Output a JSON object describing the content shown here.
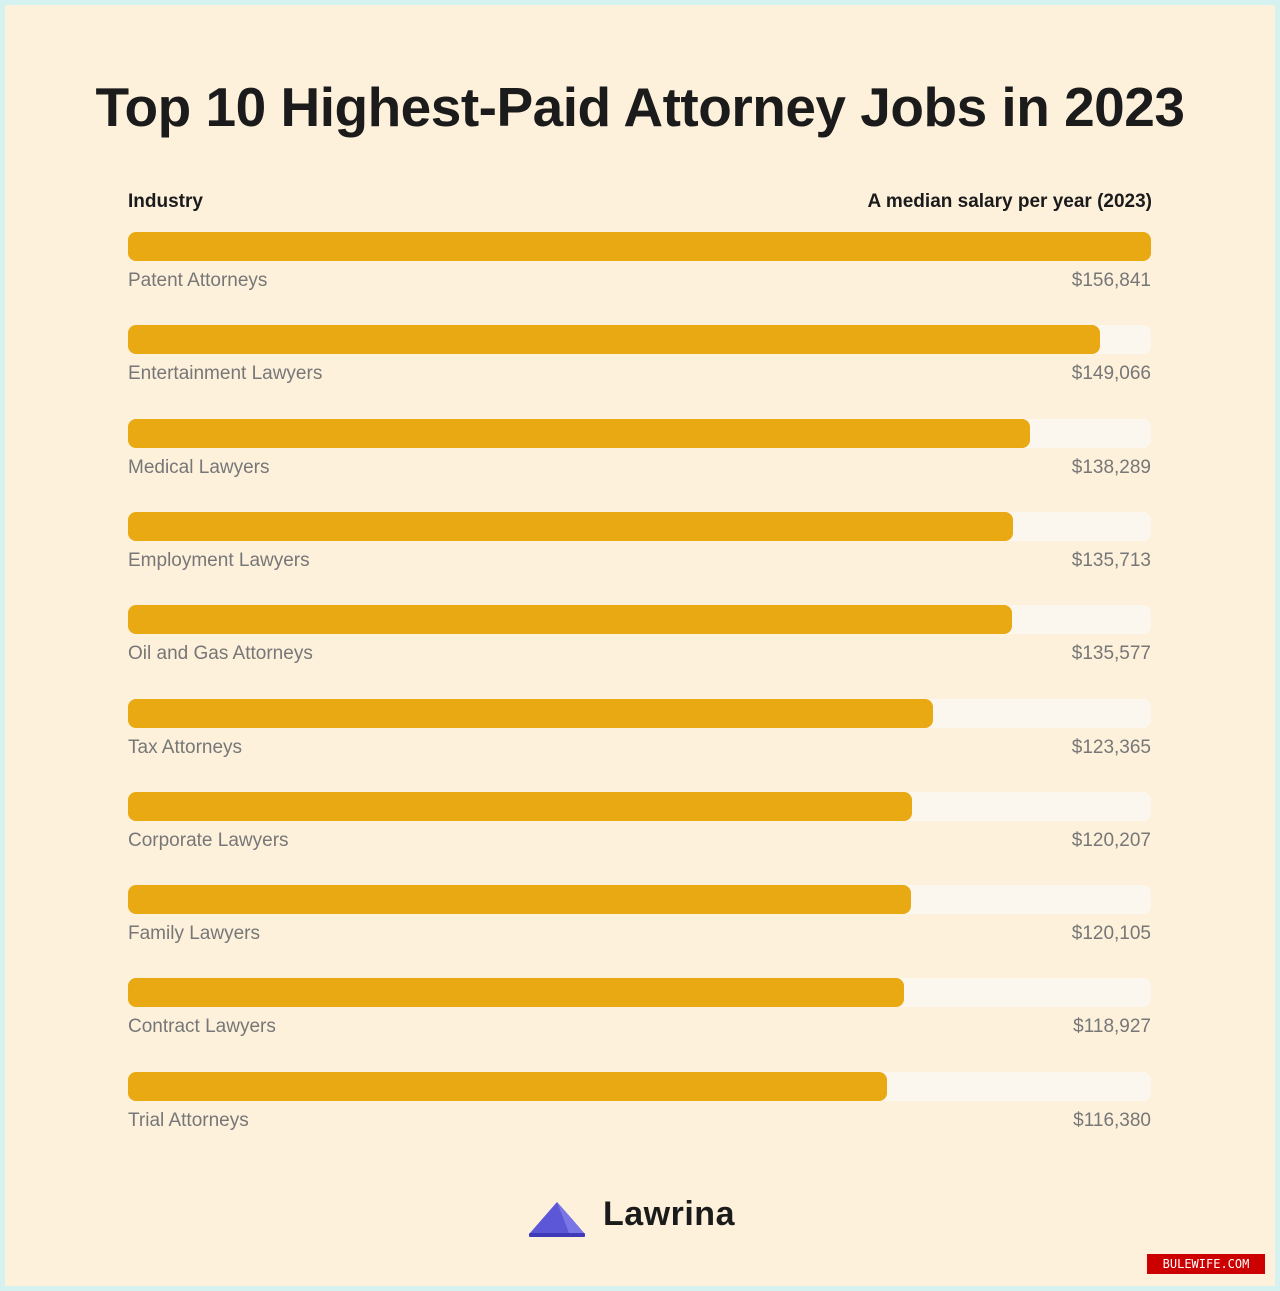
{
  "title": "Top 10 Highest-Paid Attorney Jobs in 2023",
  "columns": {
    "left": "Industry",
    "right": "A median salary per year (2023)"
  },
  "chart_data": {
    "type": "bar",
    "orientation": "horizontal",
    "categories": [
      "Patent Attorneys",
      "Entertainment Lawyers",
      "Medical Lawyers",
      "Employment Lawyers",
      "Oil and Gas Attorneys",
      "Tax Attorneys",
      "Corporate Lawyers",
      "Family Lawyers",
      "Contract Lawyers",
      "Trial Attorneys"
    ],
    "values": [
      156841,
      149066,
      138289,
      135713,
      135577,
      123365,
      120207,
      120105,
      118927,
      116380
    ],
    "value_labels": [
      "$156,841",
      "$149,066",
      "$138,289",
      "$135,713",
      "$135,577",
      "$123,365",
      "$120,207",
      "$120,105",
      "$118,927",
      "$116,380"
    ],
    "colors": {
      "bar": "#e8a912",
      "track": "#fcf7ee"
    }
  },
  "brand": {
    "name": "Lawrina",
    "logo_icon": "lawrina-triangle-logo",
    "color": "#5b57d6"
  },
  "watermark": "BULEWIFE.COM"
}
